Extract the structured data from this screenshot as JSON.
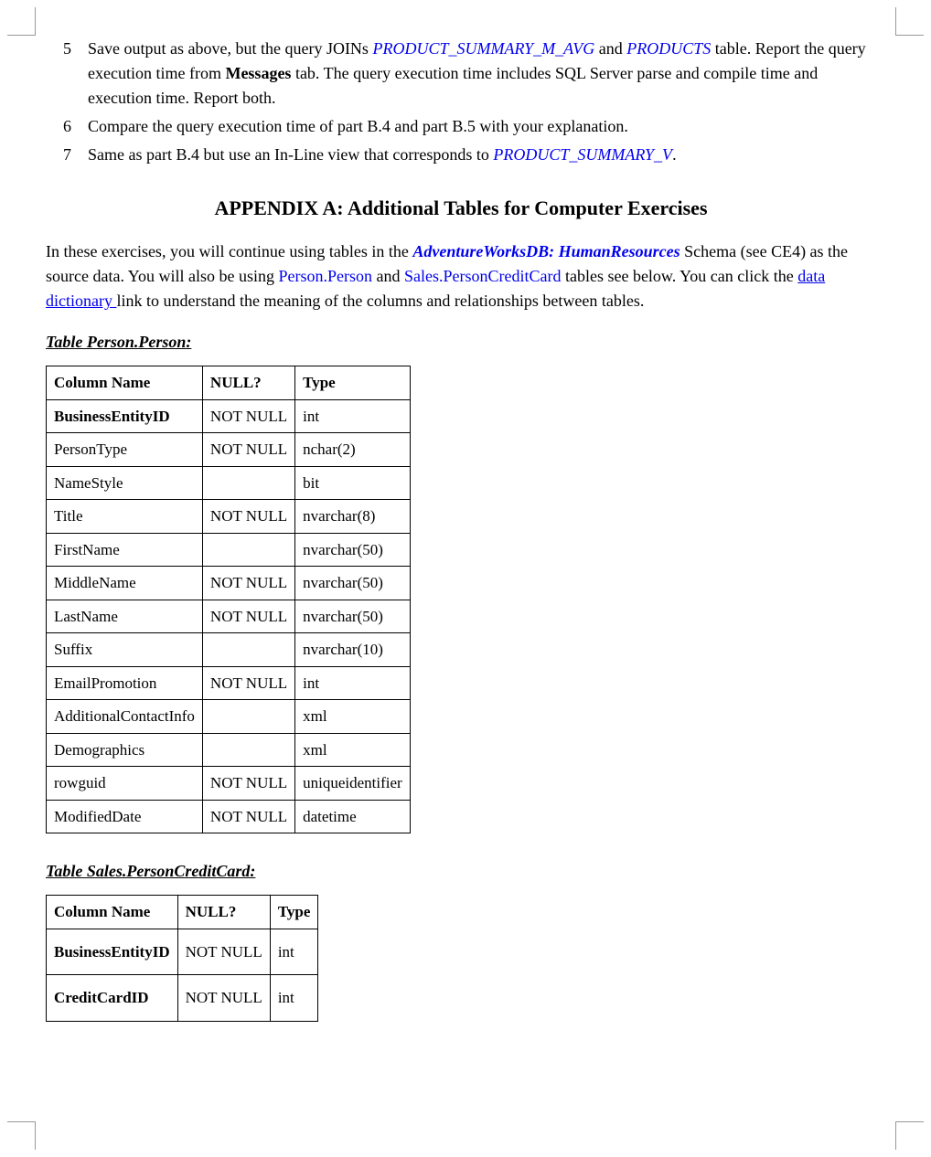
{
  "list": {
    "items": [
      {
        "num": "5",
        "html": "Save output as above, but the query JOINs <span class='ref'>PRODUCT_SUMMARY_M_AVG</span> and <span class='ref'>PRODUCTS</span> table. Report the query execution time from <b>Messages</b> tab. The query execution time includes SQL Server parse and compile time and execution time. Report both."
      },
      {
        "num": "6",
        "html": "Compare the query execution time of part B.4 and part B.5 with your explanation."
      },
      {
        "num": "7",
        "html": "Same as part B.4 but use an In-Line view that corresponds to <span class='ref'>PRODUCT_SUMMARY_V</span>."
      }
    ]
  },
  "appendix_title": "APPENDIX A:  Additional Tables for Computer Exercises",
  "intro_html": "In these exercises, you will continue using tables in the <span class='ref bold'>AdventureWorksDB: HumanResources</span> Schema (see CE4) as the source data. You will also be using <span class='blue'>Person.Person</span> and <span class='blue'>Sales.PersonCreditCard</span> tables see below. You can click the <span class='link'>data dictionary </span>link to understand the meaning of the columns and relationships between tables.",
  "table1": {
    "title": "Table Person.Person:",
    "headers": [
      "Column Name",
      "NULL?",
      "Type"
    ],
    "rows": [
      {
        "col": "BusinessEntityID",
        "bold": true,
        "null": "NOT NULL",
        "type": "int"
      },
      {
        "col": "PersonType",
        "bold": false,
        "null": "NOT NULL",
        "type": "nchar(2)"
      },
      {
        "col": "NameStyle",
        "bold": false,
        "null": "",
        "type": "bit"
      },
      {
        "col": "Title",
        "bold": false,
        "null": "NOT NULL",
        "type": "nvarchar(8)"
      },
      {
        "col": "FirstName",
        "bold": false,
        "null": "",
        "type": "nvarchar(50)"
      },
      {
        "col": "MiddleName",
        "bold": false,
        "null": "NOT NULL",
        "type": "nvarchar(50)"
      },
      {
        "col": "LastName",
        "bold": false,
        "null": "NOT NULL",
        "type": "nvarchar(50)"
      },
      {
        "col": "Suffix",
        "bold": false,
        "null": "",
        "type": "nvarchar(10)"
      },
      {
        "col": "EmailPromotion",
        "bold": false,
        "null": "NOT NULL",
        "type": "int"
      },
      {
        "col": "AdditionalContactInfo",
        "bold": false,
        "null": "",
        "type": "xml"
      },
      {
        "col": "Demographics",
        "bold": false,
        "null": "",
        "type": "xml"
      },
      {
        "col": "rowguid",
        "bold": false,
        "null": "NOT NULL",
        "type": "uniqueidentifier"
      },
      {
        "col": "ModifiedDate",
        "bold": false,
        "null": "NOT NULL",
        "type": "datetime"
      }
    ]
  },
  "table2": {
    "title": "Table Sales.PersonCreditCard:",
    "headers": [
      "Column Name",
      "NULL?",
      "Type"
    ],
    "rows": [
      {
        "col": "BusinessEntityID",
        "bold": true,
        "null": "NOT NULL",
        "type": "int"
      },
      {
        "col": "CreditCardID",
        "bold": true,
        "null": "NOT NULL",
        "type": "int"
      }
    ]
  }
}
